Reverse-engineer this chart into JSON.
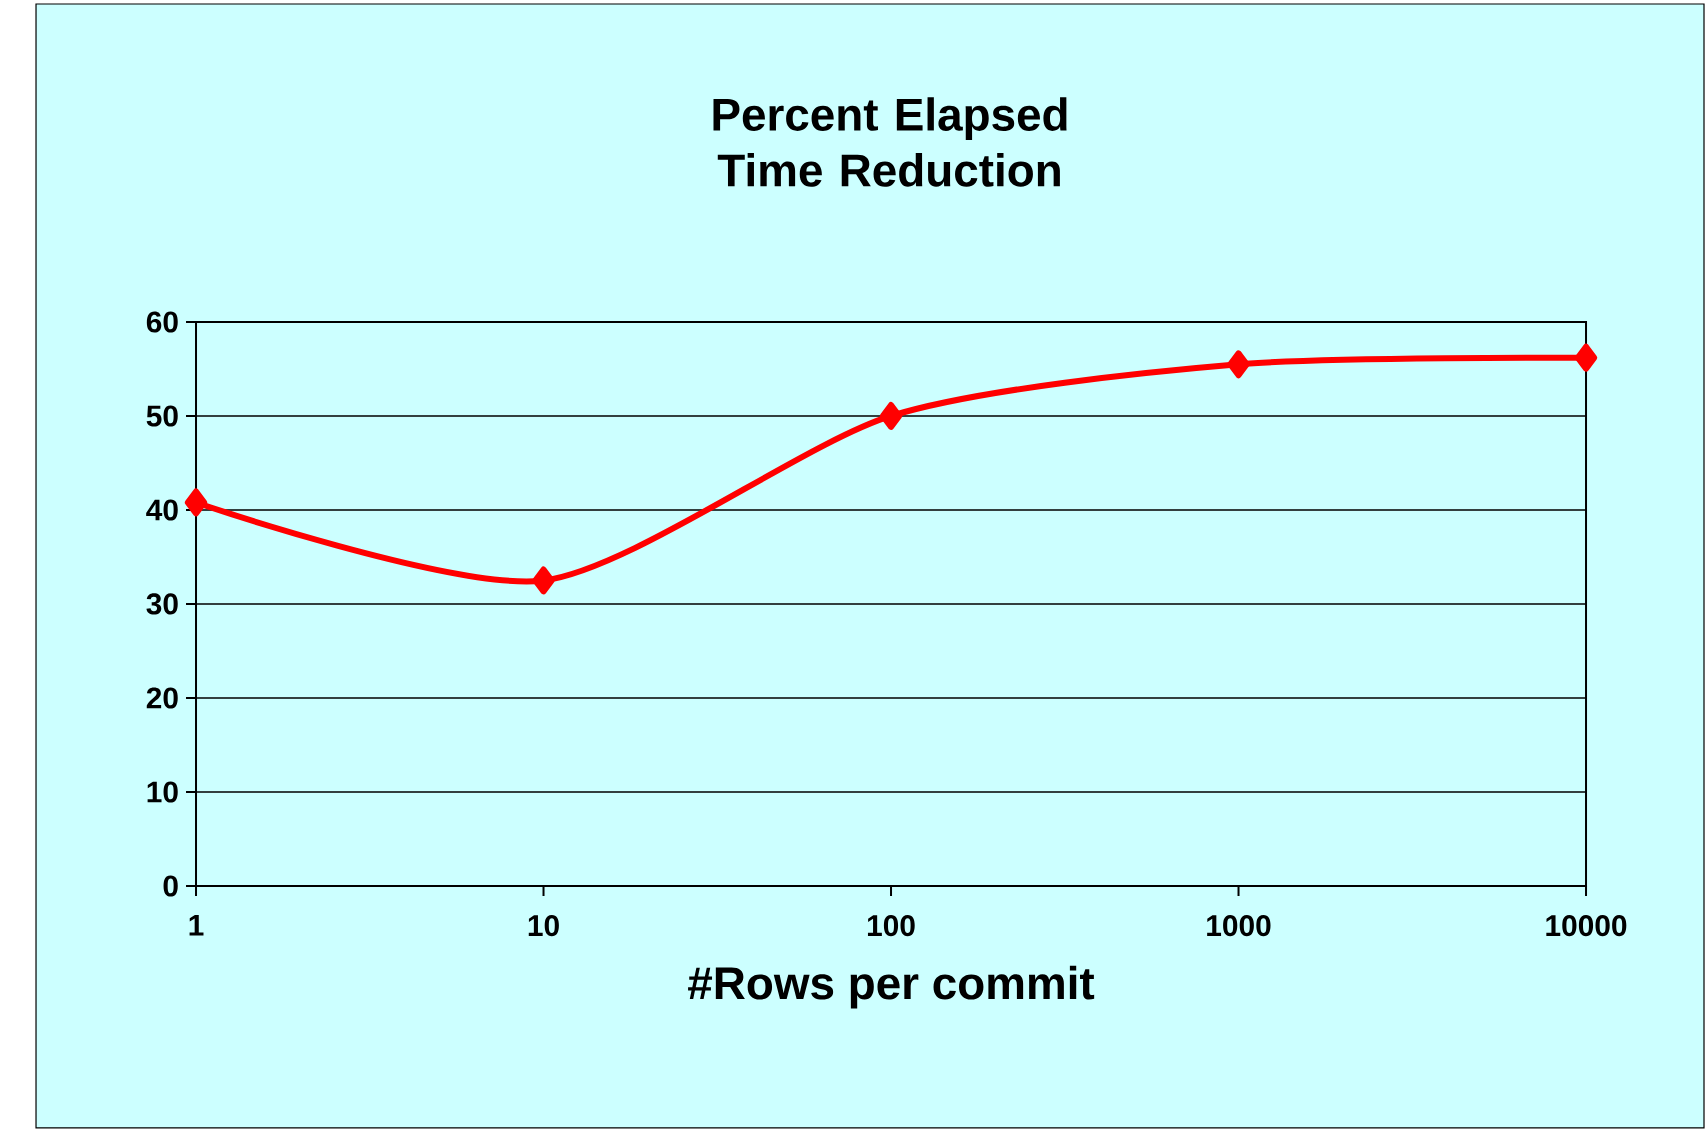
{
  "chart_data": {
    "type": "line",
    "title": "Percent Elapsed Time Reduction",
    "xlabel": "#Rows per commit",
    "x": [
      1,
      10,
      100,
      1000,
      10000
    ],
    "series": [
      {
        "color": "#ff0000",
        "values": [
          40.8,
          32.5,
          50.0,
          55.5,
          56.2
        ]
      }
    ],
    "log": "x",
    "xlim": [
      1,
      10000
    ],
    "xticks": [
      1,
      10,
      100,
      1000,
      10000
    ],
    "ylim": [
      0,
      60
    ],
    "yticks": [
      0,
      10,
      20,
      30,
      40,
      50,
      60
    ],
    "grid": "y",
    "marker": "diamond",
    "line_style": "solid"
  }
}
